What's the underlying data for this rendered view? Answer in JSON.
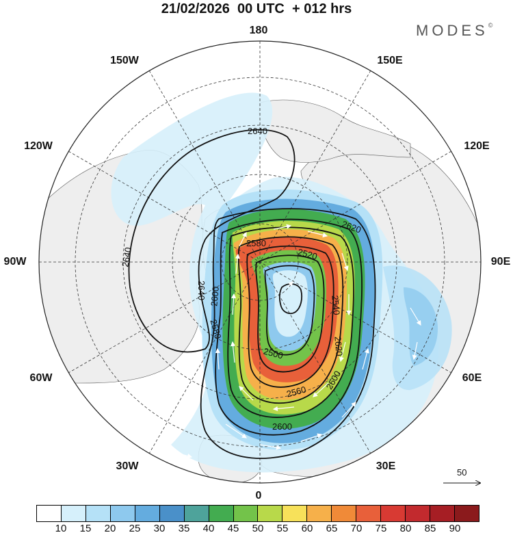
{
  "title": "21/02/2026  00 UTC  + 012 hrs",
  "brand": {
    "name": "MODES",
    "mark": "©"
  },
  "lon_labels": {
    "n180": "180",
    "e150": "150E",
    "e120": "120E",
    "e90": "90E",
    "e60": "60E",
    "e30": "30E",
    "s0": "0",
    "w30": "30W",
    "w60": "60W",
    "w90": "90W",
    "w120": "120W",
    "w150": "150W"
  },
  "contours": {
    "c2640_top": "2640",
    "c2640_left": "2640",
    "c2640_inner": "2640",
    "c2620": "2620",
    "c2580": "2580",
    "c2520": "2520",
    "c2540": "2540",
    "c2600_left": "2600",
    "c2580_left": "2580",
    "c2500": "2500",
    "c2560": "2560",
    "c2600_right": "2600",
    "c2600_bottom": "2600",
    "c2620_right": "2620"
  },
  "wind_reference": {
    "value": "50"
  },
  "colorbar": {
    "ticks": [
      "10",
      "15",
      "20",
      "25",
      "30",
      "35",
      "40",
      "45",
      "50",
      "55",
      "60",
      "65",
      "70",
      "75",
      "80",
      "85",
      "90"
    ],
    "colors": [
      "#ffffff",
      "#d6f0fb",
      "#b5e1f7",
      "#8ec9ee",
      "#64acdf",
      "#4a90c9",
      "#4ea39b",
      "#43ac50",
      "#73c34a",
      "#b8d94a",
      "#f7e15a",
      "#f6b04a",
      "#f08a38",
      "#e8603a",
      "#d83a33",
      "#c22a2e",
      "#a61e24",
      "#8b1a1c"
    ]
  }
}
